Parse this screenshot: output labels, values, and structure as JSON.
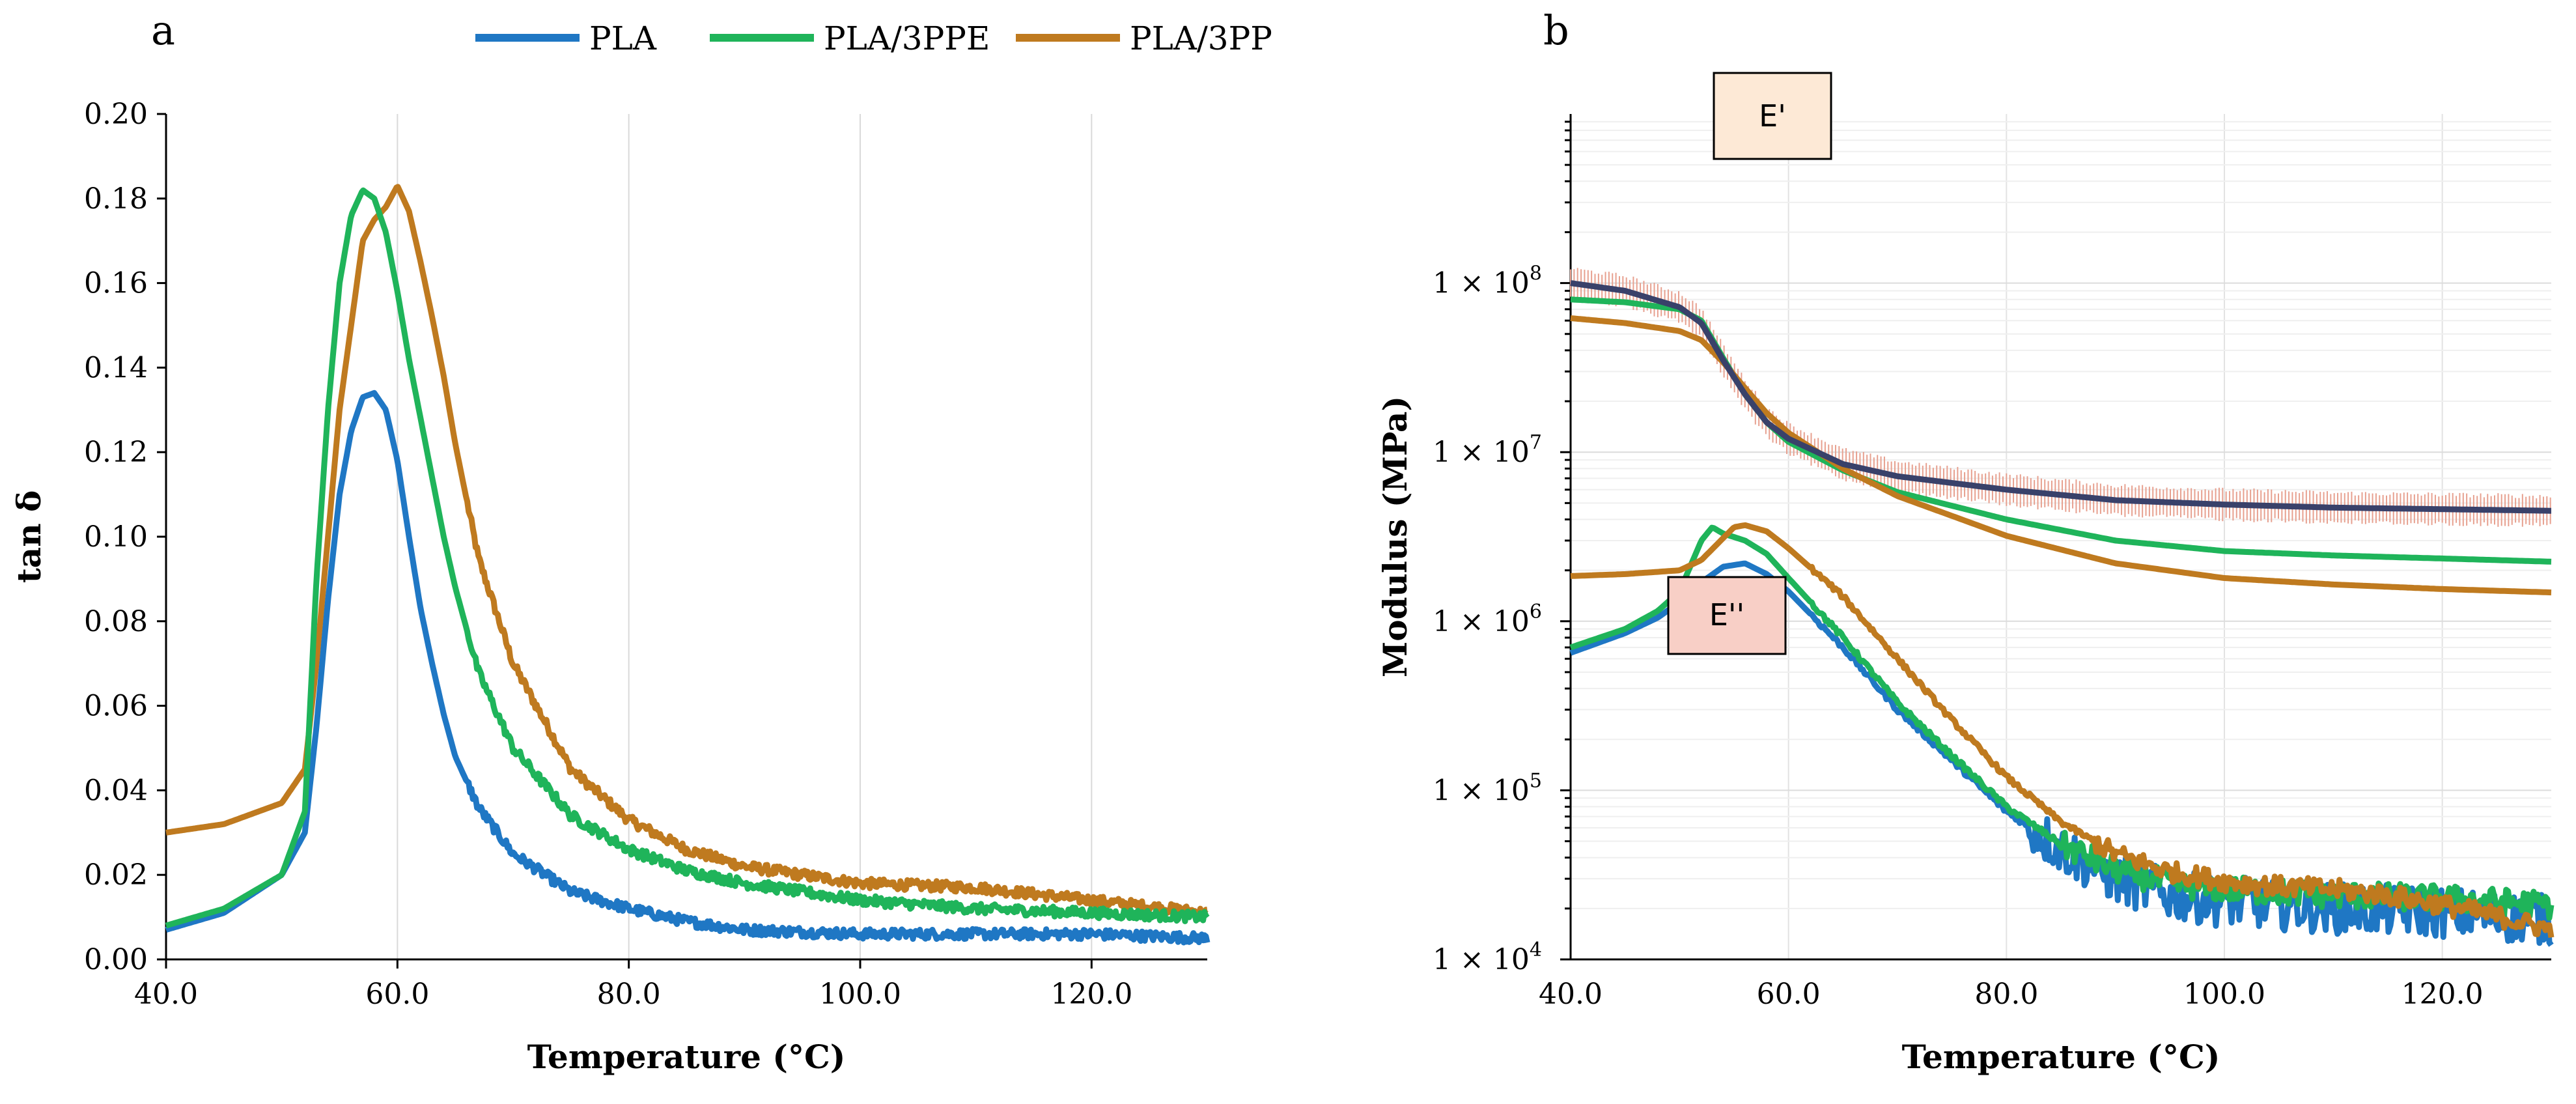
{
  "colors": {
    "PLA": "#1f77c4",
    "PLA/3PPE": "#1fb45a",
    "PLA/3PP": "#bf7a1f",
    "E_prime_dark": "#39416a",
    "error_bars": "#e7a08f",
    "E_prime_box": "#fde9d6",
    "E_double_box": "#f8cfc6"
  },
  "legend": [
    "PLA",
    "PLA/3PPE",
    "PLA/3PP"
  ],
  "chart_data": [
    {
      "type": "line",
      "panel": "a",
      "xlabel": "Temperature (°C)",
      "ylabel": "tan δ",
      "xlim": [
        40,
        130
      ],
      "ylim": [
        0,
        0.2
      ],
      "xticks": [
        "40.0",
        "60.0",
        "80.0",
        "100.0",
        "120.0"
      ],
      "yticks": [
        "0.00",
        "0.02",
        "0.04",
        "0.06",
        "0.08",
        "0.10",
        "0.12",
        "0.14",
        "0.16",
        "0.18",
        "0.20"
      ],
      "series": [
        {
          "name": "PLA",
          "x": [
            40,
            45,
            50,
            52,
            53,
            54,
            55,
            56,
            57,
            58,
            59,
            60,
            61,
            62,
            63,
            64,
            65,
            67,
            70,
            75,
            80,
            85,
            90,
            100,
            110,
            120,
            130
          ],
          "y": [
            0.007,
            0.011,
            0.02,
            0.03,
            0.055,
            0.085,
            0.11,
            0.125,
            0.133,
            0.134,
            0.13,
            0.118,
            0.1,
            0.083,
            0.07,
            0.058,
            0.048,
            0.036,
            0.025,
            0.016,
            0.012,
            0.009,
            0.007,
            0.006,
            0.006,
            0.006,
            0.005
          ]
        },
        {
          "name": "PLA/3PPE",
          "x": [
            40,
            45,
            50,
            52,
            53,
            54,
            55,
            56,
            57,
            58,
            59,
            60,
            61,
            62,
            63,
            64,
            65,
            67,
            70,
            75,
            80,
            85,
            90,
            100,
            110,
            120,
            130
          ],
          "y": [
            0.008,
            0.012,
            0.02,
            0.035,
            0.09,
            0.13,
            0.16,
            0.176,
            0.182,
            0.18,
            0.172,
            0.158,
            0.142,
            0.128,
            0.114,
            0.1,
            0.088,
            0.068,
            0.05,
            0.034,
            0.026,
            0.021,
            0.018,
            0.014,
            0.012,
            0.011,
            0.01
          ]
        },
        {
          "name": "PLA/3PP",
          "x": [
            40,
            45,
            50,
            52,
            53,
            55,
            57,
            58,
            59,
            60,
            61,
            62,
            63,
            64,
            65,
            67,
            70,
            75,
            80,
            85,
            90,
            100,
            110,
            120,
            130
          ],
          "y": [
            0.03,
            0.032,
            0.037,
            0.045,
            0.07,
            0.13,
            0.17,
            0.175,
            0.178,
            0.183,
            0.177,
            0.165,
            0.152,
            0.138,
            0.122,
            0.095,
            0.07,
            0.045,
            0.033,
            0.026,
            0.022,
            0.018,
            0.017,
            0.014,
            0.011
          ]
        }
      ]
    },
    {
      "type": "line",
      "panel": "b",
      "xlabel": "Temperature (°C)",
      "ylabel": "Modulus (MPa)",
      "yscale": "log",
      "xlim": [
        40,
        130
      ],
      "ylim": [
        10000,
        1000000000
      ],
      "xticks": [
        "40.0",
        "60.0",
        "80.0",
        "100.0",
        "120.0"
      ],
      "ytick_values": [
        10000,
        100000,
        1000000,
        10000000,
        100000000
      ],
      "ytick_mantissa": "1 × 10",
      "ytick_exponents": [
        "4",
        "5",
        "6",
        "7",
        "8"
      ],
      "annotations": [
        "E'",
        "E''"
      ],
      "series": [
        {
          "name": "E' (mean with error bars)",
          "x": [
            40,
            45,
            50,
            52,
            54,
            56,
            58,
            60,
            65,
            70,
            80,
            90,
            100,
            110,
            120,
            130
          ],
          "y": [
            100000000,
            90000000,
            72000000,
            58000000,
            35000000,
            22000000,
            15000000,
            12000000,
            8500000,
            7200000,
            6000000,
            5200000,
            4900000,
            4700000,
            4600000,
            4500000
          ]
        },
        {
          "name": "PLA/3PPE E'",
          "x": [
            40,
            45,
            50,
            52,
            54,
            56,
            58,
            60,
            65,
            70,
            80,
            90,
            100,
            110,
            120,
            130
          ],
          "y": [
            80000000,
            77000000,
            70000000,
            60000000,
            36000000,
            22000000,
            15000000,
            11500000,
            7800000,
            5800000,
            4000000,
            3000000,
            2600000,
            2450000,
            2350000,
            2250000
          ]
        },
        {
          "name": "PLA/3PP E'",
          "x": [
            40,
            45,
            50,
            52,
            54,
            56,
            58,
            60,
            65,
            70,
            80,
            90,
            100,
            110,
            120,
            130
          ],
          "y": [
            62000000,
            58000000,
            52000000,
            46000000,
            34000000,
            24000000,
            17000000,
            13000000,
            8000000,
            5500000,
            3200000,
            2200000,
            1800000,
            1650000,
            1550000,
            1480000
          ]
        },
        {
          "name": "PLA E''",
          "x": [
            40,
            45,
            48,
            50,
            52,
            54,
            56,
            58,
            60,
            65,
            70,
            75,
            80,
            85,
            90,
            95,
            100,
            105,
            110,
            115,
            120,
            125,
            130
          ],
          "y": [
            650000,
            850000,
            1050000,
            1300000,
            1700000,
            2100000,
            2200000,
            1900000,
            1500000,
            700000,
            300000,
            150000,
            75000,
            45000,
            30000,
            24000,
            22000,
            21000,
            20000,
            19500,
            19000,
            18000,
            17000
          ]
        },
        {
          "name": "PLA/3PPE E''",
          "x": [
            40,
            45,
            48,
            50,
            52,
            53,
            54,
            56,
            58,
            60,
            65,
            70,
            75,
            80,
            85,
            90,
            95,
            100,
            105,
            110,
            115,
            120,
            125,
            130
          ],
          "y": [
            700000,
            900000,
            1150000,
            1500000,
            3000000,
            3600000,
            3300000,
            3000000,
            2500000,
            1800000,
            800000,
            330000,
            160000,
            80000,
            48000,
            34000,
            28000,
            26000,
            25000,
            24000,
            23500,
            23000,
            22000,
            21000
          ]
        },
        {
          "name": "PLA/3PP E''",
          "x": [
            40,
            45,
            50,
            52,
            54,
            55,
            56,
            58,
            60,
            65,
            70,
            75,
            80,
            85,
            90,
            95,
            100,
            105,
            110,
            115,
            120,
            125,
            130
          ],
          "y": [
            1850000,
            1900000,
            2000000,
            2300000,
            3100000,
            3600000,
            3700000,
            3400000,
            2700000,
            1400000,
            600000,
            260000,
            120000,
            65000,
            42000,
            33000,
            29000,
            27000,
            26000,
            24000,
            21000,
            18000,
            15000
          ]
        }
      ]
    }
  ],
  "panel_labels": {
    "a": "a",
    "b": "b"
  }
}
